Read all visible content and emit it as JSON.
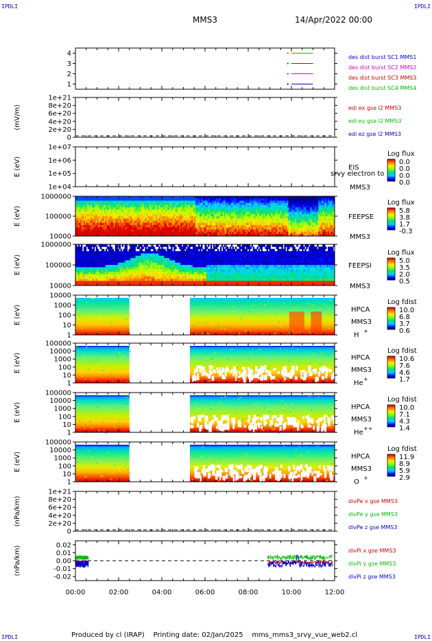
{
  "header": {
    "corner_label": "IPDLI",
    "spacecraft": "MMS3",
    "date": "14/Apr/2022 00:00"
  },
  "footer": {
    "produced_by": "Produced by cl (IRAP)",
    "printing_date": "Printing date: 02/Jan/2025",
    "script_name": "mms_mms3_srvy_vue_web2.cl"
  },
  "time_axis": {
    "range_hours": [
      0,
      12
    ],
    "ticks": [
      0,
      2,
      4,
      6,
      8,
      10,
      12
    ],
    "tick_labels": [
      "00:00",
      "02:00",
      "04:00",
      "06:00",
      "08:00",
      "10:00",
      "12:00"
    ]
  },
  "colors": {
    "mms1": "#0000cc",
    "mms2": "#cc00cc",
    "mms3": "#cc0000",
    "mms4": "#00bb00",
    "x_comp": "#cc0000",
    "y_comp": "#00bb00",
    "z_comp": "#0000cc"
  },
  "chart_data": [
    {
      "id": "burst",
      "type": "line",
      "ylim": [
        0.5,
        4.5
      ],
      "y_ticks": [
        1,
        2,
        3,
        4
      ],
      "y_tick_labels": [
        "1",
        "2",
        "3",
        "4"
      ],
      "legend": [
        {
          "text": "des dist burst SC1 MMS1",
          "color": "#0000cc"
        },
        {
          "text": "des dist burst SC2 MMS2",
          "color": "#cc00cc"
        },
        {
          "text": "des dist burst SC3 MMS3",
          "color": "#cc0000"
        },
        {
          "text": "des dist burst SC4 MMS4",
          "color": "#00bb00"
        }
      ],
      "series": [
        {
          "name": "des dist burst SC4 MMS4",
          "y": 4,
          "segments": [
            [
              10.0,
              11.0
            ]
          ],
          "color": "#00bb00"
        },
        {
          "name": "des dist burst SC3 MMS3",
          "y": 3,
          "segments": [
            [
              10.0,
              11.0
            ]
          ],
          "color": "#cc0000"
        },
        {
          "name": "des dist burst SC2 MMS2",
          "y": 2,
          "segments": [
            [
              10.0,
              11.0
            ]
          ],
          "color": "#cc00cc"
        },
        {
          "name": "des dist burst SC1 MMS1",
          "y": 1,
          "segments": [
            [
              10.0,
              11.0
            ]
          ],
          "color": "#0000cc"
        }
      ]
    },
    {
      "id": "edi",
      "type": "line",
      "ylabel": "(mV/m)",
      "ylim": [
        0,
        1e+21
      ],
      "y_ticks": [
        0,
        2e+20,
        4e+20,
        6e+20,
        8e+20,
        1e+21
      ],
      "y_tick_labels": [
        "0",
        "2e+20",
        "4e+20",
        "6e+20",
        "8e+20",
        "1e+21"
      ],
      "legend": [
        {
          "text": "edi ex gse l2 MMS3",
          "color": "#cc0000"
        },
        {
          "text": "edi ey gse l2 MMS3",
          "color": "#00bb00"
        },
        {
          "text": "edi ez gse l2 MMS3",
          "color": "#0000cc"
        }
      ],
      "zero_line": true
    },
    {
      "id": "eis",
      "type": "heatmap",
      "ylabel": "E (eV)",
      "log_y": true,
      "ylim": [
        10000.0,
        10000000.0
      ],
      "y_tick_labels": [
        "1e+04",
        "1e+05",
        "1e+06",
        "1e+07"
      ],
      "instrument": "EIS",
      "spacecraft": "MMS3",
      "overlay_text": "srvy electron to",
      "colorbar": {
        "title": "Log flux",
        "labels": [
          "0.0",
          "0.0",
          "0.0",
          "0.0"
        ]
      },
      "empty": true
    },
    {
      "id": "feepse",
      "type": "heatmap",
      "ylabel": "E (eV)",
      "log_y": true,
      "ylim": [
        10000.0,
        1000000.0
      ],
      "y_tick_labels": [
        "10000",
        "100000",
        "1000000"
      ],
      "instrument": "FEEPSE",
      "spacecraft": "MMS3",
      "colorbar": {
        "title": "Log flux",
        "labels": [
          "5.8",
          "3.8",
          "1.7",
          "-0.3"
        ]
      }
    },
    {
      "id": "feepsi",
      "type": "heatmap",
      "ylabel": "E (eV)",
      "log_y": true,
      "ylim": [
        10000.0,
        1000000.0
      ],
      "y_tick_labels": [
        "10000",
        "100000",
        "1000000"
      ],
      "instrument": "FEEPSI",
      "spacecraft": "MMS3",
      "colorbar": {
        "title": "Log flux",
        "labels": [
          "5.0",
          "3.5",
          "2.0",
          "0.5"
        ]
      }
    },
    {
      "id": "hpca_h",
      "type": "heatmap",
      "ylabel": "E (eV)",
      "log_y": true,
      "ylim": [
        1,
        10000.0
      ],
      "y_tick_labels": [
        "1",
        "10",
        "100",
        "1000",
        "10000"
      ],
      "instrument": "HPCA",
      "spacecraft": "MMS3",
      "species": "H",
      "species_sup": "+",
      "data_gap_hours": [
        2.5,
        5.3
      ],
      "colorbar": {
        "title": "Log fdist",
        "labels": [
          "10.0",
          "6.8",
          "3.7",
          "0.6"
        ]
      }
    },
    {
      "id": "hpca_he1",
      "type": "heatmap",
      "ylabel": "E (eV)",
      "log_y": true,
      "ylim": [
        1,
        100000.0
      ],
      "y_tick_labels": [
        "1",
        "10",
        "100",
        "1000",
        "10000",
        "100000"
      ],
      "instrument": "HPCA",
      "spacecraft": "MMS3",
      "species": "He",
      "species_sup": "+",
      "data_gap_hours": [
        2.5,
        5.3
      ],
      "colorbar": {
        "title": "Log fdist",
        "labels": [
          "10.6",
          "7.6",
          "4.6",
          "1.7"
        ]
      }
    },
    {
      "id": "hpca_he2",
      "type": "heatmap",
      "ylabel": "E (eV)",
      "log_y": true,
      "ylim": [
        1,
        100000.0
      ],
      "y_tick_labels": [
        "1",
        "10",
        "100",
        "1000",
        "10000",
        "100000"
      ],
      "instrument": "HPCA",
      "spacecraft": "MMS3",
      "species": "He",
      "species_sup": "++",
      "data_gap_hours": [
        2.5,
        5.3
      ],
      "colorbar": {
        "title": "Log fdist",
        "labels": [
          "10.0",
          "7.1",
          "4.3",
          "1.4"
        ]
      }
    },
    {
      "id": "hpca_o",
      "type": "heatmap",
      "ylabel": "E (eV)",
      "log_y": true,
      "ylim": [
        1,
        100000.0
      ],
      "y_tick_labels": [
        "1",
        "10",
        "100",
        "1000",
        "10000",
        "100000"
      ],
      "instrument": "HPCA",
      "spacecraft": "MMS3",
      "species": "O",
      "species_sup": "+",
      "data_gap_hours": [
        2.5,
        5.3
      ],
      "colorbar": {
        "title": "Log fdist",
        "labels": [
          "11.9",
          "8.9",
          "5.9",
          "2.9"
        ]
      }
    },
    {
      "id": "divpe",
      "type": "line",
      "ylabel": "(nPa/km)",
      "ylim": [
        0,
        1e+21
      ],
      "y_ticks": [
        0,
        2e+20,
        4e+20,
        6e+20,
        8e+20,
        1e+21
      ],
      "y_tick_labels": [
        "0",
        "2e+20",
        "4e+20",
        "6e+20",
        "8e+20",
        "1e+21"
      ],
      "legend": [
        {
          "text": "divPe x gse MMS3",
          "color": "#cc0000"
        },
        {
          "text": "divPe y gse MMS3",
          "color": "#00bb00"
        },
        {
          "text": "divPe z gse MMS3",
          "color": "#0000cc"
        }
      ],
      "zero_line": true
    },
    {
      "id": "divpi",
      "type": "line",
      "ylabel": "(nPa/km)",
      "ylim": [
        -0.025,
        0.025
      ],
      "y_ticks": [
        -0.02,
        -0.01,
        0,
        0.01,
        0.02
      ],
      "y_tick_labels": [
        "-0.02",
        "-0.01",
        "0.00",
        "0.01",
        "0.02"
      ],
      "legend": [
        {
          "text": "divPi x gse MMS3",
          "color": "#cc0000"
        },
        {
          "text": "divPi y gse MMS3",
          "color": "#00bb00"
        },
        {
          "text": "divPi z gse MMS3",
          "color": "#0000cc"
        }
      ],
      "zero_line": true,
      "data_intervals_hours": [
        [
          0.0,
          0.6
        ],
        [
          8.9,
          11.9
        ]
      ]
    }
  ]
}
